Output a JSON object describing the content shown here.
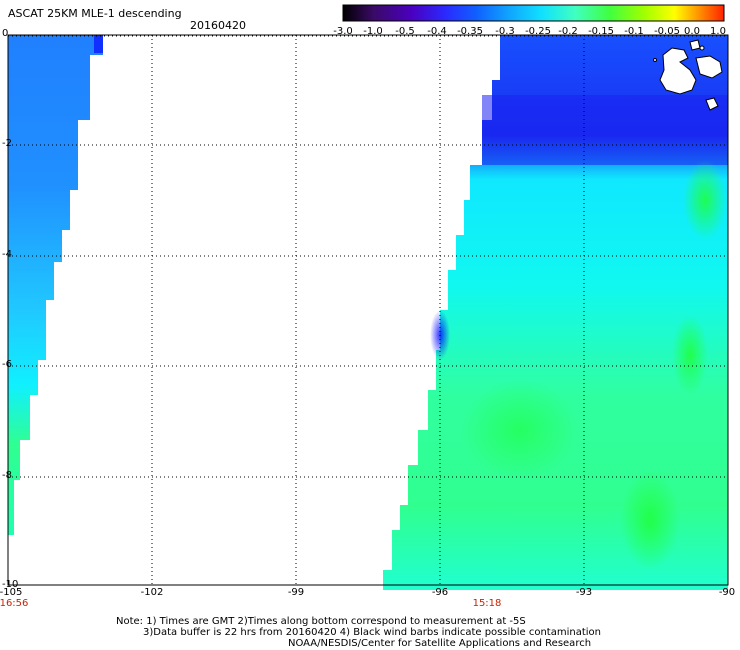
{
  "title": "ASCAT 25KM MLE-1 descending",
  "date": "20160420",
  "colorbar": {
    "ticks": [
      "-3.0",
      "-1.0",
      "-0.5",
      "-0.4",
      "-0.35",
      "-0.3",
      "-0.25",
      "-0.2",
      "-0.15",
      "-0.1",
      "-0.05",
      "0.0",
      "1.0"
    ],
    "colors": [
      "#000000",
      "#3a0a66",
      "#4a00c0",
      "#2a2aff",
      "#1060ff",
      "#10a0ff",
      "#10e0ff",
      "#40ffc0",
      "#40ff40",
      "#a0ff00",
      "#ffff00",
      "#ff9900",
      "#ff2200"
    ]
  },
  "axes": {
    "y_ticks": [
      "0",
      "-2",
      "-4",
      "-6",
      "-8",
      "-10"
    ],
    "x_ticks": [
      "-105",
      "-102",
      "-99",
      "-96",
      "-93",
      "-90"
    ],
    "times": [
      "16:56",
      "15:18"
    ]
  },
  "notes": [
    "Note: 1) Times are GMT 2)Times along bottom correspond to measurement at -5S",
    "3)Data buffer is 22 hrs from 20160420 4) Black wind barbs indicate possible contamination",
    "NOAA/NESDIS/Center for Satellite Applications and Research"
  ]
}
